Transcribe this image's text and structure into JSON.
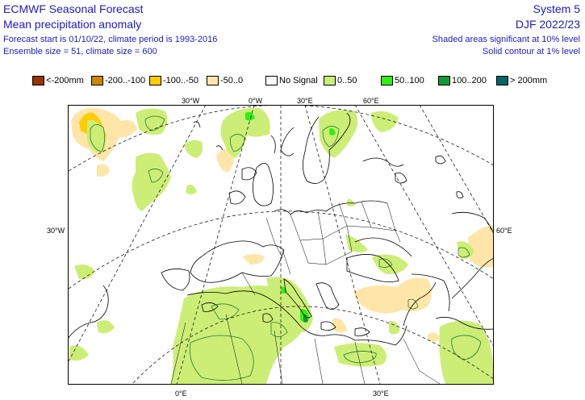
{
  "header": {
    "title": "ECMWF Seasonal Forecast",
    "subtitle": "Mean precipitation anomaly",
    "line1": "Forecast start is 01/10/22, climate period is 1993-2016",
    "line2": "Ensemble size = 51, climate size = 600",
    "system": "System 5",
    "season": "DJF 2022/23",
    "note1": "Shaded areas significant at 10% level",
    "note2": "Solid contour at 1% level"
  },
  "legend": [
    {
      "label": "<-200mm",
      "color": "#993300"
    },
    {
      "label": "-200..-100",
      "color": "#cc8800"
    },
    {
      "label": "-100..-50",
      "color": "#ffcc00"
    },
    {
      "label": "-50..0",
      "color": "#ffe6a8"
    },
    {
      "label": "No Signal",
      "color": "#ffffff"
    },
    {
      "label": "0..50",
      "color": "#ccee77"
    },
    {
      "label": "50..100",
      "color": "#33ee11"
    },
    {
      "label": "100..200",
      "color": "#119933"
    },
    {
      "label": "> 200mm",
      "color": "#006666"
    }
  ],
  "coords": {
    "top": [
      "30°W",
      "0°W",
      "30°E",
      "60°E"
    ],
    "left": "30°W",
    "right": "60°E",
    "bottom": [
      "0°E",
      "30°E"
    ]
  }
}
